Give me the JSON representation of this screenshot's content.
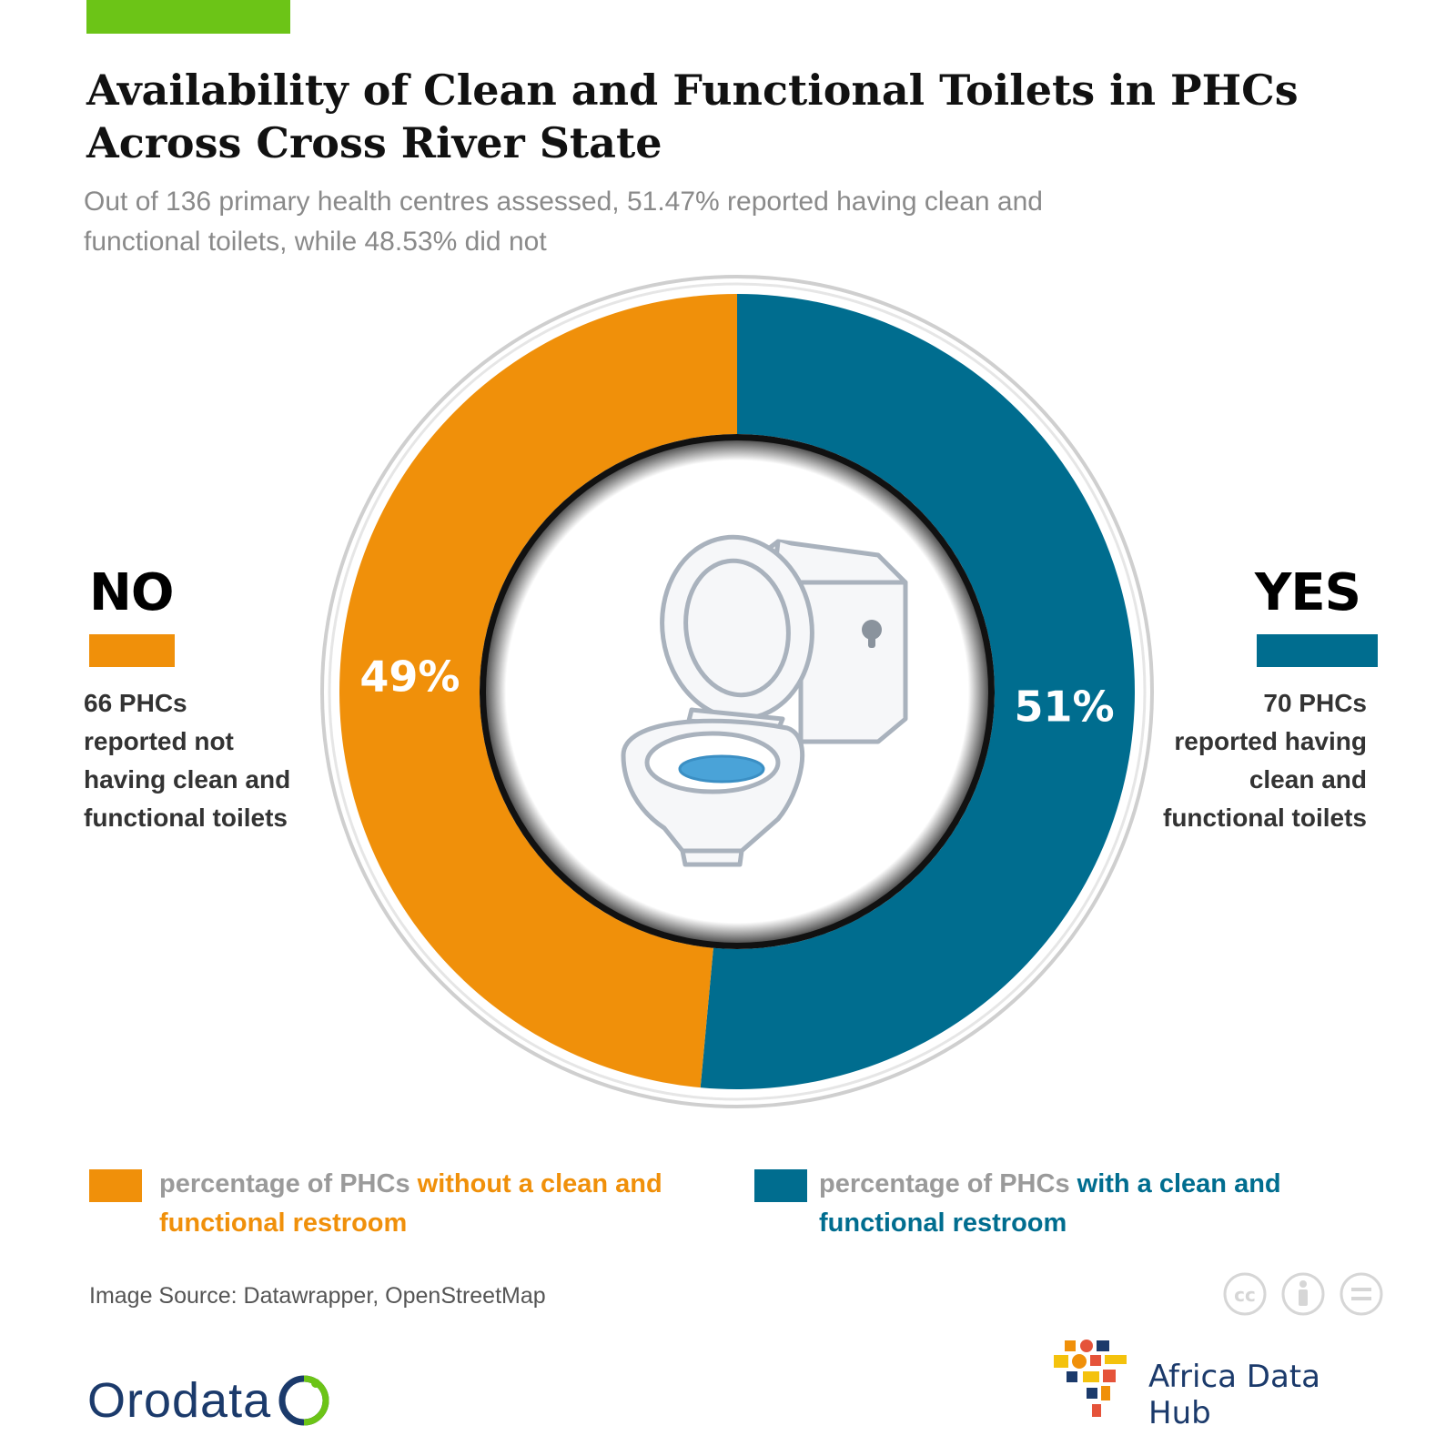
{
  "header": {
    "title": "Availability of Clean and Functional Toilets in PHCs Across Cross River State",
    "subtitle": "Out of 136 primary health centres assessed, 51.47% reported having clean and functional toilets, while 48.53% did not",
    "accent_color": "#6cc417"
  },
  "sides": {
    "no": {
      "label": "NO",
      "description": "66 PHCs reported not having clean and functional toilets",
      "color": "#f0900a"
    },
    "yes": {
      "label": "YES",
      "description": "70 PHCs reported having clean and functional toilets",
      "color": "#006d8f"
    }
  },
  "chart_data": {
    "type": "pie",
    "style": "donut",
    "center_icon": "toilet-icon",
    "slices": [
      {
        "key": "yes",
        "value": 51.47,
        "display_label": "51%",
        "color": "#006d8f"
      },
      {
        "key": "no",
        "value": 48.53,
        "display_label": "49%",
        "color": "#f0900a"
      }
    ]
  },
  "legend": {
    "no": {
      "prefix": "percentage of PHCs ",
      "highlight": "without a clean and functional restroom"
    },
    "yes": {
      "prefix": "percentage of PHCs ",
      "highlight": "with a clean and functional restroom"
    }
  },
  "footer": {
    "source": "Image Source: Datawrapper, OpenStreetMap",
    "license_icons": [
      "cc-icon",
      "by-icon",
      "nd-icon"
    ],
    "logo_left": "Orodata",
    "logo_right": "Africa Data Hub"
  }
}
